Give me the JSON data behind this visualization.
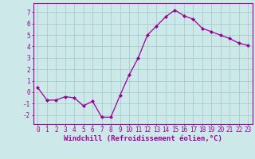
{
  "x": [
    0,
    1,
    2,
    3,
    4,
    5,
    6,
    7,
    8,
    9,
    10,
    11,
    12,
    13,
    14,
    15,
    16,
    17,
    18,
    19,
    20,
    21,
    22,
    23
  ],
  "y": [
    0.4,
    -0.7,
    -0.7,
    -0.4,
    -0.5,
    -1.2,
    -0.8,
    -2.2,
    -2.2,
    -0.3,
    1.5,
    3.0,
    5.0,
    5.8,
    6.6,
    7.2,
    6.7,
    6.4,
    5.6,
    5.3,
    5.0,
    4.7,
    4.3,
    4.1
  ],
  "line_color": "#990099",
  "marker": "D",
  "marker_size": 2.0,
  "bg_color": "#cce8e8",
  "grid_color": "#aacccc",
  "xlabel": "Windchill (Refroidissement éolien,°C)",
  "ylabel": "",
  "xlim": [
    -0.5,
    23.5
  ],
  "ylim": [
    -2.8,
    7.8
  ],
  "yticks": [
    -2,
    -1,
    0,
    1,
    2,
    3,
    4,
    5,
    6,
    7
  ],
  "xticks": [
    0,
    1,
    2,
    3,
    4,
    5,
    6,
    7,
    8,
    9,
    10,
    11,
    12,
    13,
    14,
    15,
    16,
    17,
    18,
    19,
    20,
    21,
    22,
    23
  ],
  "tick_label_color": "#990099",
  "spine_color": "#990099",
  "label_fontsize": 6.5,
  "tick_fontsize": 5.5,
  "linewidth": 0.9
}
